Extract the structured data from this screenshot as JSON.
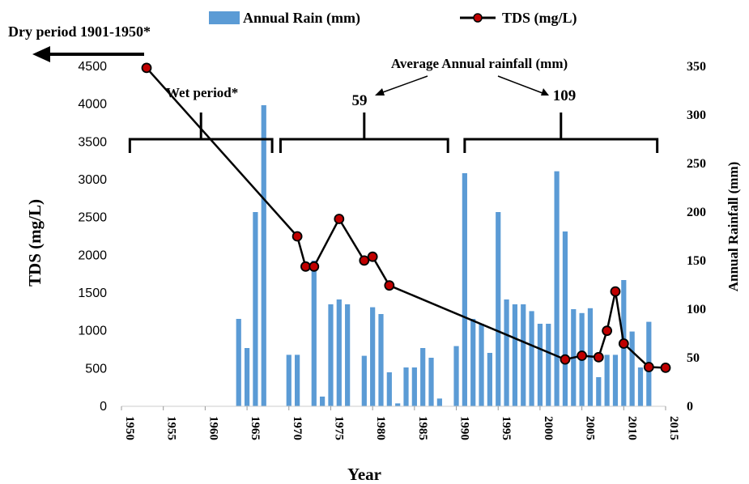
{
  "chart_data": {
    "type": "bar+line",
    "xlabel": "Year",
    "ylabel_left": "TDS (mg/L)",
    "ylabel_right": "Annual Rainfall (mm)",
    "xlim": [
      1950,
      2015
    ],
    "ylim_left": [
      0,
      4500
    ],
    "ylim_right": [
      0,
      350
    ],
    "x_ticks": [
      "1950",
      "1955",
      "1960",
      "1965",
      "1970",
      "1975",
      "1980",
      "1985",
      "1990",
      "1995",
      "2000",
      "2005",
      "2010",
      "2015"
    ],
    "y_left_ticks": [
      "0",
      "500",
      "1000",
      "1500",
      "2000",
      "2500",
      "3000",
      "3500",
      "4000",
      "4500"
    ],
    "y_right_ticks": [
      "0",
      "50",
      "100",
      "150",
      "200",
      "250",
      "300",
      "350"
    ],
    "legend": {
      "rain_label": "Annual Rain (mm)",
      "tds_label": "TDS (mg/L)",
      "placement": "top"
    },
    "annotations": {
      "dry_period": "Dry period 1901-1950*",
      "wet_period": "Wet period*",
      "average_title": "Average Annual rainfall (mm)",
      "avg_1": "59",
      "avg_2": "109"
    },
    "brackets": [
      {
        "from": 1951,
        "to": 1968
      },
      {
        "from": 1969,
        "to": 1989
      },
      {
        "from": 1991,
        "to": 2014
      }
    ],
    "series": [
      {
        "name": "Annual Rain (mm)",
        "axis": "right",
        "kind": "bar",
        "color": "#5b9bd5",
        "points": [
          [
            1964,
            90
          ],
          [
            1965,
            60
          ],
          [
            1966,
            200
          ],
          [
            1967,
            310
          ],
          [
            1970,
            53
          ],
          [
            1971,
            53
          ],
          [
            1973,
            150
          ],
          [
            1974,
            10
          ],
          [
            1975,
            105
          ],
          [
            1976,
            110
          ],
          [
            1977,
            105
          ],
          [
            1979,
            52
          ],
          [
            1980,
            102
          ],
          [
            1981,
            95
          ],
          [
            1982,
            35
          ],
          [
            1983,
            3
          ],
          [
            1984,
            40
          ],
          [
            1985,
            40
          ],
          [
            1986,
            60
          ],
          [
            1987,
            50
          ],
          [
            1988,
            8
          ],
          [
            1990,
            62
          ],
          [
            1991,
            240
          ],
          [
            1992,
            90
          ],
          [
            1993,
            85
          ],
          [
            1994,
            55
          ],
          [
            1995,
            200
          ],
          [
            1996,
            110
          ],
          [
            1997,
            105
          ],
          [
            1998,
            105
          ],
          [
            1999,
            98
          ],
          [
            2000,
            85
          ],
          [
            2001,
            85
          ],
          [
            2002,
            242
          ],
          [
            2003,
            180
          ],
          [
            2004,
            100
          ],
          [
            2005,
            96
          ],
          [
            2006,
            101
          ],
          [
            2007,
            30
          ],
          [
            2008,
            53
          ],
          [
            2009,
            53
          ],
          [
            2010,
            130
          ],
          [
            2011,
            77
          ],
          [
            2012,
            40
          ],
          [
            2013,
            87
          ]
        ]
      },
      {
        "name": "TDS (mg/L)",
        "axis": "left",
        "kind": "line",
        "color": "#000000",
        "marker_color": "#c00000",
        "points": [
          [
            1953,
            4480
          ],
          [
            1971,
            2250
          ],
          [
            1972,
            1850
          ],
          [
            1973,
            1850
          ],
          [
            1976,
            2480
          ],
          [
            1979,
            1930
          ],
          [
            1980,
            1980
          ],
          [
            1982,
            1600
          ],
          [
            2003,
            620
          ],
          [
            2005,
            670
          ],
          [
            2007,
            650
          ],
          [
            2008,
            1000
          ],
          [
            2009,
            1520
          ],
          [
            2010,
            830
          ],
          [
            2013,
            520
          ],
          [
            2015,
            510
          ]
        ]
      }
    ]
  }
}
